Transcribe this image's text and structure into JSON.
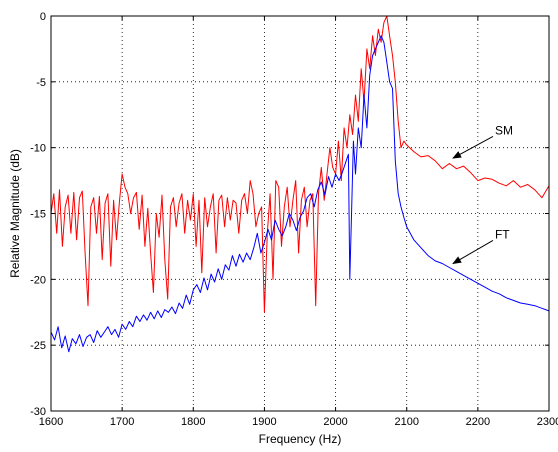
{
  "chart_data": {
    "type": "line",
    "title": "",
    "xlabel": "Frequency (Hz)",
    "ylabel": "Relative Magnitude (dB)",
    "xlim": [
      1600,
      2300
    ],
    "ylim": [
      -30,
      0
    ],
    "xticks": [
      1600,
      1700,
      1800,
      1900,
      2000,
      2100,
      2200,
      2300
    ],
    "yticks": [
      0,
      -5,
      -10,
      -15,
      -20,
      -25,
      -30
    ],
    "xtick_labels": [
      "1600",
      "1700",
      "1800",
      "1900",
      "2000",
      "2100",
      "2200",
      "2300"
    ],
    "ytick_labels": [
      "0",
      "-5",
      "-10",
      "-15",
      "-20",
      "-25",
      "-30"
    ],
    "grid": true,
    "series": [
      {
        "name": "SM",
        "color": "#ff0000",
        "x": [
          1600,
          1604,
          1608,
          1612,
          1616,
          1620,
          1624,
          1628,
          1632,
          1636,
          1640,
          1644,
          1648,
          1652,
          1656,
          1660,
          1664,
          1668,
          1672,
          1676,
          1680,
          1684,
          1688,
          1692,
          1696,
          1700,
          1704,
          1708,
          1712,
          1716,
          1720,
          1724,
          1728,
          1732,
          1736,
          1740,
          1744,
          1748,
          1752,
          1756,
          1760,
          1764,
          1768,
          1772,
          1776,
          1780,
          1784,
          1788,
          1792,
          1796,
          1800,
          1804,
          1808,
          1812,
          1816,
          1820,
          1824,
          1828,
          1832,
          1836,
          1840,
          1844,
          1848,
          1852,
          1856,
          1860,
          1864,
          1868,
          1872,
          1876,
          1880,
          1884,
          1888,
          1892,
          1896,
          1900,
          1904,
          1908,
          1912,
          1916,
          1920,
          1924,
          1928,
          1932,
          1936,
          1940,
          1944,
          1948,
          1952,
          1956,
          1960,
          1964,
          1968,
          1972,
          1976,
          1980,
          1984,
          1988,
          1992,
          1996,
          2000,
          2004,
          2008,
          2012,
          2016,
          2020,
          2024,
          2028,
          2032,
          2036,
          2040,
          2044,
          2048,
          2052,
          2056,
          2060,
          2064,
          2068,
          2072,
          2076,
          2080,
          2084,
          2088,
          2092,
          2096,
          2100,
          2110,
          2120,
          2130,
          2140,
          2150,
          2160,
          2170,
          2180,
          2190,
          2200,
          2210,
          2220,
          2230,
          2240,
          2250,
          2260,
          2270,
          2280,
          2290,
          2300
        ],
        "y": [
          -15.0,
          -13.5,
          -16.5,
          -13.2,
          -17.5,
          -14.5,
          -13.6,
          -16.5,
          -13.4,
          -17.0,
          -13.8,
          -13.3,
          -18.0,
          -22.0,
          -14.5,
          -13.8,
          -16.5,
          -13.7,
          -18.5,
          -14.2,
          -13.5,
          -19.0,
          -14.0,
          -17.0,
          -14.2,
          -12.0,
          -13.0,
          -13.5,
          -15.0,
          -13.8,
          -13.4,
          -16.2,
          -13.6,
          -17.5,
          -14.6,
          -18.0,
          -21.0,
          -15.0,
          -16.8,
          -13.6,
          -18.5,
          -21.5,
          -14.5,
          -13.8,
          -16.0,
          -14.2,
          -13.5,
          -16.5,
          -14.0,
          -15.5,
          -13.5,
          -17.5,
          -14.0,
          -19.5,
          -13.8,
          -16.0,
          -14.5,
          -13.5,
          -18.0,
          -14.0,
          -13.6,
          -16.0,
          -13.8,
          -15.5,
          -14.0,
          -14.2,
          -16.5,
          -14.0,
          -13.5,
          -15.0,
          -12.5,
          -13.5,
          -16.0,
          -15.0,
          -14.5,
          -22.5,
          -16.5,
          -13.5,
          -20.0,
          -12.5,
          -13.0,
          -17.5,
          -14.5,
          -13.0,
          -16.0,
          -14.0,
          -12.5,
          -18.0,
          -14.0,
          -13.0,
          -16.0,
          -14.0,
          -13.5,
          -22.0,
          -13.5,
          -11.5,
          -14.0,
          -12.0,
          -10.0,
          -11.5,
          -12.0,
          -9.5,
          -12.5,
          -8.5,
          -10.0,
          -7.5,
          -9.0,
          -6.0,
          -8.0,
          -4.0,
          -6.5,
          -2.5,
          -4.0,
          -1.5,
          -3.0,
          -1.0,
          -2.0,
          -0.5,
          0.0,
          -1.5,
          -3.0,
          -5.0,
          -8.0,
          -10.0,
          -9.5,
          -9.8,
          -10.3,
          -10.7,
          -10.6,
          -11.0,
          -11.6,
          -11.2,
          -11.6,
          -11.4,
          -11.9,
          -12.5,
          -12.3,
          -12.4,
          -12.7,
          -12.9,
          -12.5,
          -13.0,
          -12.8,
          -13.2,
          -13.8,
          -12.9
        ],
        "annotation": {
          "text": "SM",
          "x": 2210,
          "y": -9.3,
          "arrow_to": [
            2165,
            -10.8
          ]
        }
      },
      {
        "name": "FT",
        "color": "#0000ff",
        "x": [
          1600,
          1605,
          1610,
          1615,
          1620,
          1625,
          1630,
          1635,
          1640,
          1645,
          1650,
          1655,
          1660,
          1665,
          1670,
          1675,
          1680,
          1685,
          1690,
          1695,
          1700,
          1705,
          1710,
          1715,
          1720,
          1725,
          1730,
          1735,
          1740,
          1745,
          1750,
          1755,
          1760,
          1765,
          1770,
          1775,
          1780,
          1785,
          1790,
          1795,
          1800,
          1805,
          1810,
          1815,
          1820,
          1825,
          1830,
          1835,
          1840,
          1845,
          1850,
          1855,
          1860,
          1865,
          1870,
          1875,
          1880,
          1885,
          1890,
          1895,
          1900,
          1905,
          1910,
          1915,
          1920,
          1925,
          1930,
          1935,
          1940,
          1945,
          1950,
          1955,
          1960,
          1965,
          1970,
          1975,
          1980,
          1985,
          1990,
          1995,
          2000,
          2005,
          2010,
          2015,
          2018,
          2020,
          2022,
          2025,
          2028,
          2032,
          2036,
          2040,
          2044,
          2048,
          2052,
          2056,
          2060,
          2064,
          2068,
          2072,
          2076,
          2080,
          2084,
          2088,
          2092,
          2096,
          2100,
          2110,
          2120,
          2130,
          2140,
          2150,
          2160,
          2170,
          2180,
          2190,
          2200,
          2210,
          2220,
          2230,
          2240,
          2250,
          2260,
          2270,
          2280,
          2290,
          2300
        ],
        "y": [
          -24.0,
          -24.6,
          -23.6,
          -25.2,
          -24.3,
          -25.5,
          -24.5,
          -24.9,
          -24.2,
          -25.1,
          -24.4,
          -24.2,
          -24.8,
          -23.9,
          -24.4,
          -24.0,
          -23.6,
          -24.2,
          -23.8,
          -24.4,
          -23.4,
          -23.8,
          -23.2,
          -23.6,
          -22.8,
          -23.2,
          -22.7,
          -23.1,
          -22.5,
          -23.0,
          -22.4,
          -22.9,
          -22.3,
          -22.5,
          -22.1,
          -22.6,
          -21.8,
          -22.2,
          -21.2,
          -21.9,
          -20.8,
          -20.4,
          -21.0,
          -19.9,
          -20.8,
          -19.6,
          -20.2,
          -19.2,
          -20.0,
          -18.9,
          -19.3,
          -18.2,
          -19.0,
          -18.1,
          -18.7,
          -18.0,
          -18.5,
          -17.6,
          -16.5,
          -18.0,
          -17.2,
          -16.2,
          -17.0,
          -15.5,
          -16.2,
          -16.7,
          -16.0,
          -15.0,
          -15.5,
          -16.3,
          -15.3,
          -14.8,
          -13.8,
          -13.5,
          -14.5,
          -13.2,
          -12.6,
          -13.6,
          -12.2,
          -13.0,
          -12.0,
          -12.5,
          -11.8,
          -11.0,
          -10.5,
          -20.0,
          -16.0,
          -9.5,
          -12.0,
          -8.5,
          -10.0,
          -6.0,
          -8.5,
          -4.5,
          -3.0,
          -2.5,
          -2.0,
          -1.5,
          -2.0,
          -3.5,
          -5.0,
          -5.5,
          -11.0,
          -13.5,
          -14.5,
          -15.3,
          -16.0,
          -17.0,
          -17.6,
          -18.2,
          -18.6,
          -18.8,
          -19.1,
          -19.4,
          -19.7,
          -20.0,
          -20.3,
          -20.6,
          -20.9,
          -21.1,
          -21.4,
          -21.6,
          -21.8,
          -21.9,
          -22.0,
          -22.2,
          -22.4
        ],
        "annotation": {
          "text": "FT",
          "x": 2210,
          "y": -17.2,
          "arrow_to": [
            2165,
            -18.8
          ]
        }
      }
    ]
  }
}
